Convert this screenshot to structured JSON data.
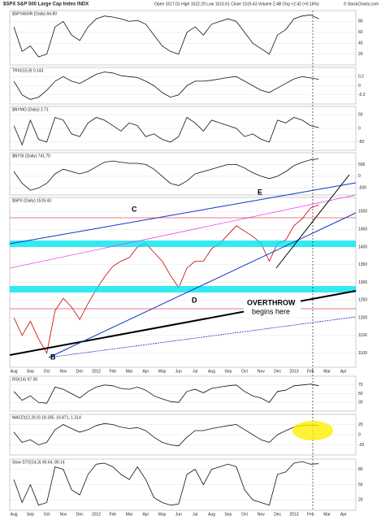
{
  "header": {
    "symbol": "$SPX S&P 500 Large Cap Index INDX",
    "quote": "Open 1517.01  High 1522.29  Low 1515.61  Close 1519.43  Volume 2.4B  Chg +2.42 (+0.16%)",
    "source": "© StockCharts.com"
  },
  "annotations": {
    "b": "B",
    "c": "C",
    "d": "D",
    "e": "E",
    "overthrow": "OVERTHROW",
    "begins": "begins here"
  },
  "chart_data": [
    {
      "type": "line",
      "label": "$SPXA50R (Daily) 84.80",
      "color": "#111111",
      "ylim": [
        0,
        100
      ],
      "yticks": [
        20,
        40,
        60,
        80
      ],
      "values": [
        70,
        25,
        35,
        15,
        20,
        70,
        80,
        55,
        45,
        70,
        85,
        90,
        88,
        85,
        80,
        82,
        75,
        55,
        35,
        25,
        20,
        60,
        70,
        55,
        75,
        80,
        85,
        80,
        60,
        40,
        30,
        20,
        55,
        65,
        85,
        90,
        92,
        85,
        null,
        null,
        null,
        null
      ]
    },
    {
      "type": "line",
      "label": "TRIX(15,9) 0.143",
      "color": "#111111",
      "ylim": [
        -0.4,
        0.4
      ],
      "yticks": [
        -0.2,
        0,
        0.2
      ],
      "values": [
        0.1,
        -0.2,
        -0.3,
        -0.25,
        -0.1,
        0.1,
        0.2,
        0.1,
        0.05,
        0.15,
        0.25,
        0.3,
        0.28,
        0.22,
        0.2,
        0.18,
        0.1,
        0,
        -0.15,
        -0.25,
        -0.2,
        0,
        0.1,
        0.1,
        0.12,
        0.15,
        0.18,
        0.2,
        0.1,
        0,
        -0.1,
        -0.15,
        -0.05,
        0.05,
        0.15,
        0.2,
        0.17,
        0.14,
        null,
        null,
        null,
        null
      ]
    },
    {
      "type": "line",
      "label": "$NYMO (Daily) 2.71",
      "color": "#111111",
      "ylim": [
        -80,
        80
      ],
      "yticks": [
        -50,
        0,
        50
      ],
      "values": [
        10,
        -60,
        30,
        -40,
        -50,
        40,
        30,
        -20,
        -30,
        20,
        40,
        30,
        10,
        -10,
        20,
        10,
        -30,
        -20,
        -40,
        -50,
        -30,
        40,
        20,
        -10,
        30,
        20,
        10,
        0,
        -30,
        -20,
        -40,
        -50,
        30,
        20,
        40,
        30,
        10,
        3,
        null,
        null,
        null,
        null
      ]
    },
    {
      "type": "line",
      "label": "$NYSI (Daily) 741.70",
      "color": "#111111",
      "ylim": [
        -800,
        1000
      ],
      "yticks": [
        -500,
        0,
        500
      ],
      "values": [
        200,
        -300,
        -600,
        -500,
        -300,
        100,
        300,
        200,
        100,
        200,
        400,
        600,
        650,
        600,
        550,
        550,
        500,
        300,
        0,
        -300,
        -400,
        -200,
        100,
        200,
        300,
        400,
        500,
        500,
        350,
        150,
        0,
        -100,
        0,
        200,
        450,
        600,
        700,
        740,
        null,
        null,
        null,
        null
      ]
    },
    {
      "type": "line",
      "label": "$SPX (Daily) 1519.43",
      "color": "#cc0000",
      "ylim": [
        1060,
        1540
      ],
      "yticks": [
        1100,
        1150,
        1200,
        1250,
        1300,
        1350,
        1400,
        1450,
        1500
      ],
      "categories": [
        "Aug",
        null,
        "Sep",
        null,
        "Oct",
        null,
        "Nov",
        null,
        "Dec",
        null,
        "2012",
        null,
        "Feb",
        null,
        "Mar",
        null,
        "Apr",
        null,
        "May",
        null,
        "Jun",
        null,
        "Jul",
        null,
        "Aug",
        null,
        "Sep",
        null,
        "Oct",
        null,
        "Nov",
        null,
        "Dec",
        null,
        "2013",
        null,
        "Feb",
        null,
        "Mar",
        null,
        "Apr",
        null
      ],
      "values": [
        1200,
        1150,
        1190,
        1140,
        1100,
        1220,
        1255,
        1230,
        1195,
        1240,
        1280,
        1315,
        1345,
        1360,
        1370,
        1400,
        1410,
        1385,
        1360,
        1320,
        1285,
        1340,
        1360,
        1360,
        1395,
        1410,
        1435,
        1460,
        1445,
        1430,
        1410,
        1360,
        1410,
        1420,
        1460,
        1480,
        1510,
        1519,
        null,
        null,
        null,
        null
      ]
    },
    {
      "type": "line",
      "label": "RSI(14) 67.56",
      "color": "#111111",
      "ylim": [
        10,
        90
      ],
      "yticks": [
        30,
        50,
        70
      ],
      "values": [
        55,
        35,
        45,
        30,
        28,
        65,
        60,
        50,
        40,
        55,
        65,
        70,
        68,
        62,
        60,
        65,
        58,
        45,
        38,
        32,
        30,
        55,
        60,
        52,
        62,
        65,
        68,
        70,
        55,
        45,
        40,
        30,
        55,
        58,
        68,
        70,
        72,
        68,
        null,
        null,
        null,
        null
      ]
    },
    {
      "type": "line",
      "label": "MACD(12,26,9) 18.185, 16.871, 1.314",
      "color": "#111111",
      "ylim": [
        -40,
        40
      ],
      "yticks": [
        -20,
        0,
        20
      ],
      "values": [
        5,
        -15,
        -10,
        -20,
        -15,
        10,
        20,
        12,
        5,
        10,
        18,
        22,
        20,
        15,
        12,
        14,
        8,
        -5,
        -15,
        -20,
        -22,
        -5,
        8,
        8,
        12,
        15,
        18,
        20,
        10,
        0,
        -10,
        -15,
        0,
        8,
        15,
        18,
        19,
        18,
        null,
        null,
        null,
        null
      ]
    },
    {
      "type": "line",
      "label": "Slow STO(14,3) 90.64, 89.14",
      "color": "#111111",
      "ylim": [
        0,
        100
      ],
      "yticks": [
        20,
        50,
        80
      ],
      "categories": [
        "Aug",
        null,
        "Sep",
        null,
        "Oct",
        null,
        "Nov",
        null,
        "Dec",
        null,
        "2012",
        null,
        "Feb",
        null,
        "Mar",
        null,
        "Apr",
        null,
        "May",
        null,
        "Jun",
        null,
        "Jul",
        null,
        "Aug",
        null,
        "Sep",
        null,
        "Oct",
        null,
        "Nov",
        null,
        "Dec",
        null,
        "2013",
        null,
        "Feb",
        null,
        "Mar",
        null,
        "Apr",
        null
      ],
      "values": [
        60,
        15,
        50,
        10,
        15,
        85,
        80,
        40,
        30,
        70,
        90,
        92,
        85,
        70,
        60,
        85,
        60,
        25,
        15,
        10,
        12,
        70,
        80,
        50,
        80,
        85,
        90,
        85,
        40,
        20,
        15,
        10,
        70,
        75,
        92,
        95,
        90,
        91,
        null,
        null,
        null,
        null
      ]
    }
  ]
}
